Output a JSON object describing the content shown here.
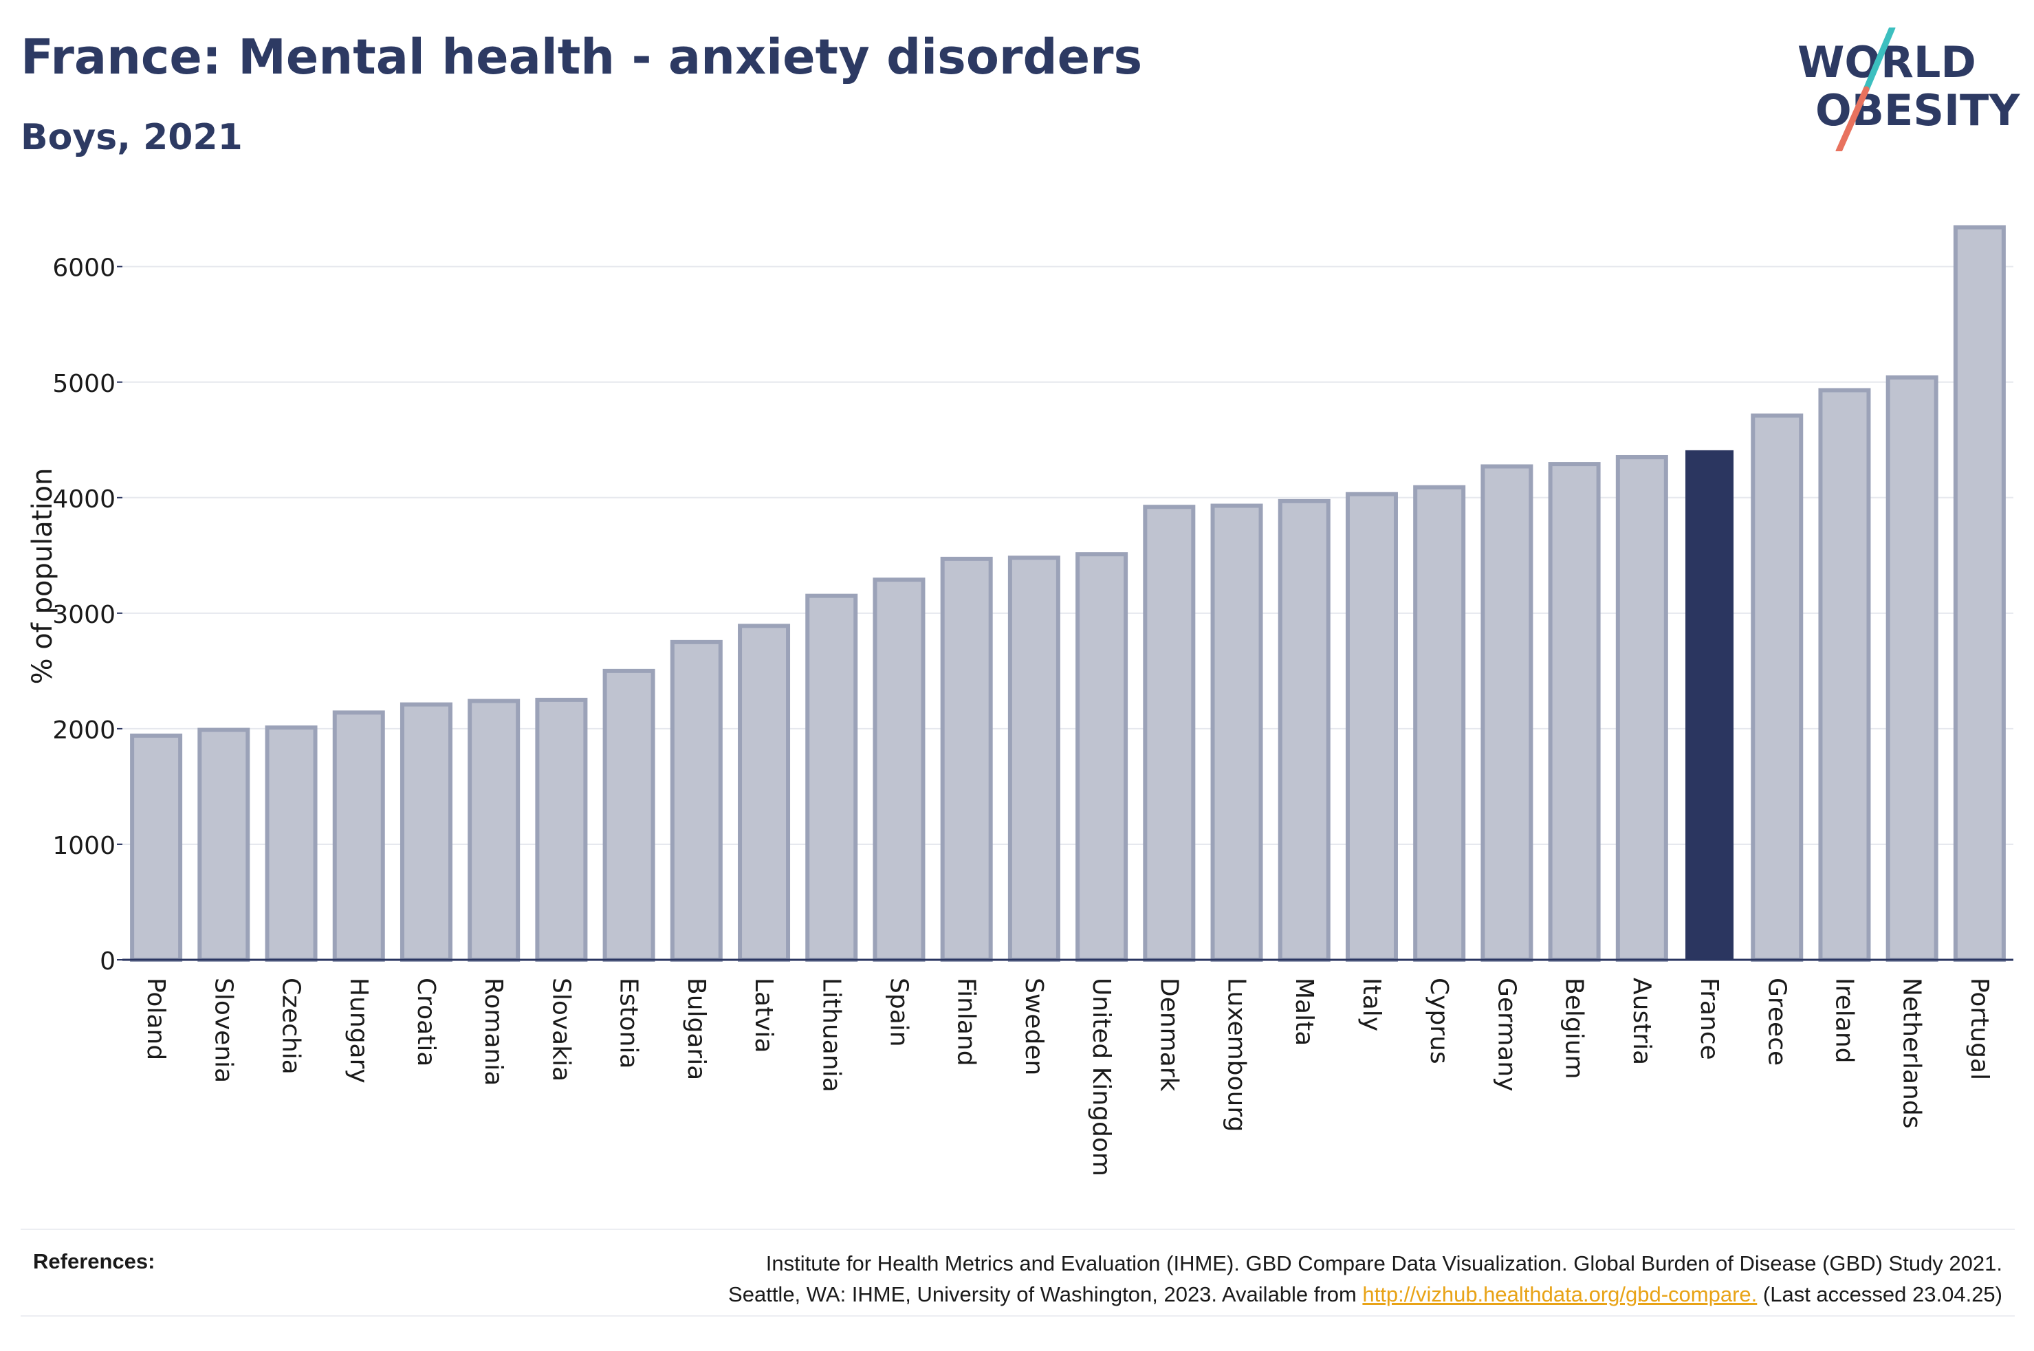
{
  "header": {
    "title": "France: Mental health - anxiety disorders",
    "subtitle": "Boys, 2021"
  },
  "logo": {
    "line1": "WORLD",
    "line2": "OBESITY",
    "colors": {
      "text": "#2d3a63",
      "slash_teal": "#3cbfbf",
      "slash_red": "#e8725e"
    }
  },
  "chart_data": {
    "type": "bar",
    "ylabel": "% of population",
    "xlabel": "",
    "ylim": [
      0,
      6500
    ],
    "yticks": [
      0,
      1000,
      2000,
      3000,
      4000,
      5000,
      6000
    ],
    "grid": true,
    "highlight": "France",
    "colors": {
      "bar": "#bfc3d0",
      "bar_border": "#9ba2b8",
      "highlight": "#2b3660",
      "axis": "#2a3560",
      "grid": "#e6e8ee"
    },
    "categories": [
      "Poland",
      "Slovenia",
      "Czechia",
      "Hungary",
      "Croatia",
      "Romania",
      "Slovakia",
      "Estonia",
      "Bulgaria",
      "Latvia",
      "Lithuania",
      "Spain",
      "Finland",
      "Sweden",
      "United Kingdom",
      "Denmark",
      "Luxembourg",
      "Malta",
      "Italy",
      "Cyprus",
      "Germany",
      "Belgium",
      "Austria",
      "France",
      "Greece",
      "Ireland",
      "Netherlands",
      "Portugal"
    ],
    "values": [
      1940,
      1990,
      2010,
      2140,
      2210,
      2240,
      2250,
      2500,
      2750,
      2890,
      3150,
      3290,
      3470,
      3480,
      3510,
      3920,
      3930,
      3970,
      4030,
      4090,
      4270,
      4290,
      4350,
      4410,
      4710,
      4930,
      5040,
      6340
    ]
  },
  "references": {
    "label": "References:",
    "line1": "Institute for Health Metrics and Evaluation (IHME). GBD Compare Data Visualization. Global Burden of Disease (GBD) Study 2021.",
    "line2_prefix": "Seattle, WA: IHME, University of Washington, 2023. Available from ",
    "link": "http://vizhub.healthdata.org/gbd-compare.",
    "line2_suffix": " (Last accessed 23.04.25)"
  }
}
